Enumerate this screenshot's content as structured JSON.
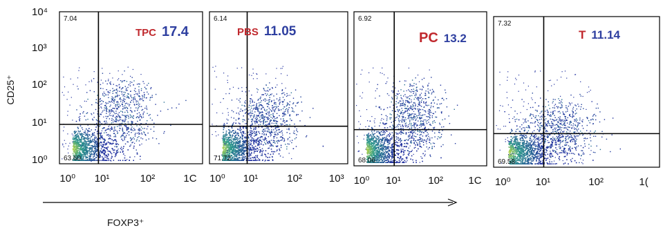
{
  "chart_data": {
    "type": "scatter",
    "title": "",
    "ylabel": "CD25⁺",
    "xlabel": "FOXP3⁺",
    "x_scale": "log",
    "y_scale": "log",
    "y_ticks": [
      "10⁰",
      "10¹",
      "10²",
      "10³",
      "10⁴"
    ],
    "colors": {
      "low": "#1f2f9e",
      "mid": "#2e9a8c",
      "high": "#d8e43a"
    },
    "panels": [
      {
        "name": "TPC",
        "percent": "17.4",
        "name_color": "#c0282d",
        "percent_color": "#2e3fa0",
        "upper_left": "7.04",
        "lower_left": "63.60",
        "x_ticks": [
          "10⁰",
          "10¹",
          "10²",
          "1C"
        ],
        "gate_x": 0.85,
        "gate_y": 1.0,
        "cluster_x": 1.4,
        "cluster_y": 1.85
      },
      {
        "name": "PBS",
        "percent": "11.05",
        "name_color": "#c0282d",
        "percent_color": "#2e3fa0",
        "upper_left": "6.14",
        "lower_left": "71.72",
        "x_ticks": [
          "10⁰",
          "10¹",
          "10²",
          "10³"
        ],
        "gate_x": 0.85,
        "gate_y": 0.95,
        "cluster_x": 1.3,
        "cluster_y": 1.6
      },
      {
        "name": "PC",
        "percent": "13.2",
        "name_color": "#c0282d",
        "percent_color": "#2e3fa0",
        "upper_left": "6.92",
        "lower_left": "68.06",
        "x_ticks": [
          "10⁰",
          "10¹",
          "10²",
          "1C"
        ],
        "gate_x": 0.95,
        "gate_y": 0.9,
        "cluster_x": 1.4,
        "cluster_y": 1.75
      },
      {
        "name": "T",
        "percent": "11.14",
        "name_color": "#c0282d",
        "percent_color": "#2e3fa0",
        "upper_left": "7.32",
        "lower_left": "69.58",
        "x_ticks": [
          "10⁰",
          "10¹",
          "10²",
          "1("
        ],
        "gate_x": 0.95,
        "gate_y": 0.85,
        "cluster_x": 1.2,
        "cluster_y": 1.4
      }
    ]
  }
}
